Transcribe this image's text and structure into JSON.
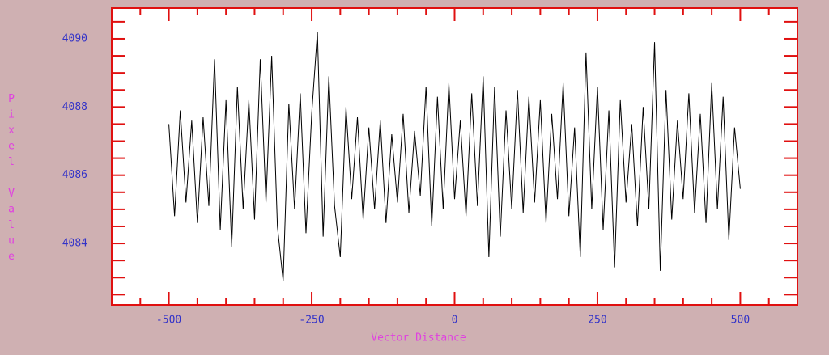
{
  "chart_data": {
    "type": "line",
    "xlabel": "Vector Distance",
    "ylabel": "Pixel Value",
    "x": [
      -500,
      -490,
      -480,
      -470,
      -460,
      -450,
      -440,
      -430,
      -420,
      -410,
      -400,
      -390,
      -380,
      -370,
      -360,
      -350,
      -340,
      -330,
      -320,
      -310,
      -300,
      -290,
      -280,
      -270,
      -260,
      -250,
      -240,
      -230,
      -220,
      -210,
      -200,
      -190,
      -180,
      -170,
      -160,
      -150,
      -140,
      -130,
      -120,
      -110,
      -100,
      -90,
      -80,
      -70,
      -60,
      -50,
      -40,
      -30,
      -20,
      -10,
      0,
      10,
      20,
      30,
      40,
      50,
      60,
      70,
      80,
      90,
      100,
      110,
      120,
      130,
      140,
      150,
      160,
      170,
      180,
      190,
      200,
      210,
      220,
      230,
      240,
      250,
      260,
      270,
      280,
      290,
      300,
      310,
      320,
      330,
      340,
      350,
      360,
      370,
      380,
      390,
      400,
      410,
      420,
      430,
      440,
      450,
      460,
      470,
      480,
      490,
      500
    ],
    "series": [
      {
        "color": "#000000",
        "values": [
          4087.5,
          4084.8,
          4087.9,
          4085.2,
          4087.6,
          4084.6,
          4087.7,
          4085.1,
          4089.4,
          4084.4,
          4088.2,
          4083.9,
          4088.6,
          4085.0,
          4088.2,
          4084.7,
          4089.4,
          4085.2,
          4089.5,
          4084.5,
          4082.9,
          4088.1,
          4085.0,
          4088.4,
          4084.3,
          4087.8,
          4090.2,
          4084.2,
          4088.9,
          4085.1,
          4083.6,
          4088.0,
          4085.3,
          4087.7,
          4084.7,
          4087.4,
          4085.0,
          4087.6,
          4084.6,
          4087.2,
          4085.2,
          4087.8,
          4084.9,
          4087.3,
          4085.4,
          4088.6,
          4084.5,
          4088.3,
          4085.0,
          4088.7,
          4085.3,
          4087.6,
          4084.8,
          4088.4,
          4085.1,
          4088.9,
          4083.6,
          4088.6,
          4084.2,
          4087.9,
          4085.0,
          4088.5,
          4084.9,
          4088.3,
          4085.2,
          4088.2,
          4084.6,
          4087.8,
          4085.3,
          4088.7,
          4084.8,
          4087.4,
          4083.6,
          4089.6,
          4085.0,
          4088.6,
          4084.4,
          4087.9,
          4083.3,
          4088.2,
          4085.2,
          4087.5,
          4084.5,
          4088.0,
          4085.0,
          4089.9,
          4083.2,
          4088.5,
          4084.7,
          4087.6,
          4085.3,
          4088.4,
          4084.9,
          4087.8,
          4084.6,
          4088.7,
          4085.0,
          4088.3,
          4084.1,
          4087.4,
          4085.6
        ]
      }
    ],
    "xlim": [
      -600,
      600
    ],
    "ylim": [
      4082.2,
      4090.9
    ],
    "xticks": [
      -500,
      -250,
      0,
      250,
      500
    ],
    "yticks": [
      4084,
      4086,
      4088,
      4090
    ],
    "x_minor_ticks": [
      -550,
      -450,
      -400,
      -350,
      -300,
      -200,
      -150,
      -100,
      -50,
      50,
      100,
      150,
      200,
      300,
      350,
      400,
      450,
      550
    ],
    "y_minor_ticks": [
      4082.5,
      4083,
      4083.5,
      4084.5,
      4085,
      4085.5,
      4086.5,
      4087,
      4087.5,
      4088.5,
      4089,
      4089.5,
      4090.5
    ],
    "frame_color": "#e01010"
  }
}
